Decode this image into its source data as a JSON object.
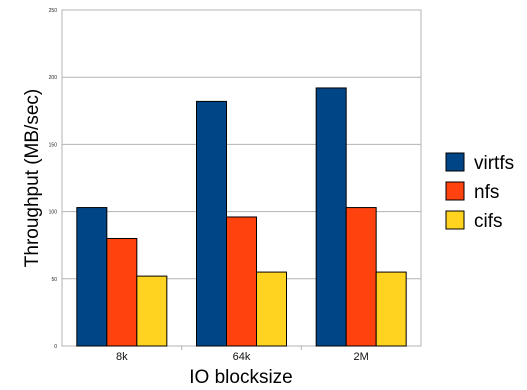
{
  "chart_data": {
    "type": "bar",
    "categories": [
      "8k",
      "64k",
      "2M"
    ],
    "series": [
      {
        "name": "virtfs",
        "values": [
          103,
          182,
          192
        ],
        "color": "#004586"
      },
      {
        "name": "nfs",
        "values": [
          80,
          96,
          103
        ],
        "color": "#ff420e"
      },
      {
        "name": "cifs",
        "values": [
          52,
          55,
          55
        ],
        "color": "#ffd320"
      }
    ],
    "xlabel": "IO blocksize",
    "ylabel": "Throughput (MB/sec)",
    "ylim": [
      0,
      250
    ],
    "yticks": [
      "0",
      "50",
      "100",
      "150",
      "200",
      "250"
    ],
    "grid": true,
    "legend_position": "right"
  }
}
